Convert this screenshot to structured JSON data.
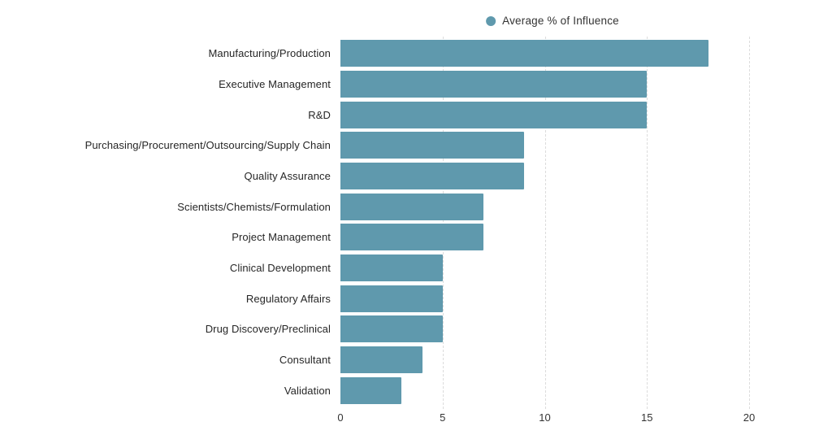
{
  "chart_data": {
    "type": "bar",
    "orientation": "horizontal",
    "title": "",
    "legend": "Average % of Influence",
    "legend_position": "top-center",
    "categories": [
      "Manufacturing/Production",
      "Executive Management",
      "R&D",
      "Purchasing/Procurement/Outsourcing/Supply Chain",
      "Quality Assurance",
      "Scientists/Chemists/Formulation",
      "Project Management",
      "Clinical Development",
      "Regulatory Affairs",
      "Drug Discovery/Preclinical",
      "Consultant",
      "Validation"
    ],
    "values": [
      18,
      15,
      15,
      9,
      9,
      7,
      7,
      5,
      5,
      5,
      4,
      3
    ],
    "xlabel": "",
    "ylabel": "",
    "xlim": [
      0,
      20
    ],
    "xticks": [
      "0",
      "5",
      "10",
      "15",
      "20"
    ],
    "gridline_ticks": [
      5,
      10,
      15,
      20
    ],
    "grid": "vertical-dashed"
  },
  "colors": {
    "bar": "#5f99ad",
    "legend_dot": "#5f99ad",
    "gridline": "#dcdcdc",
    "label_text": "#262626",
    "tick_text": "#333333",
    "background": "#ffffff"
  }
}
